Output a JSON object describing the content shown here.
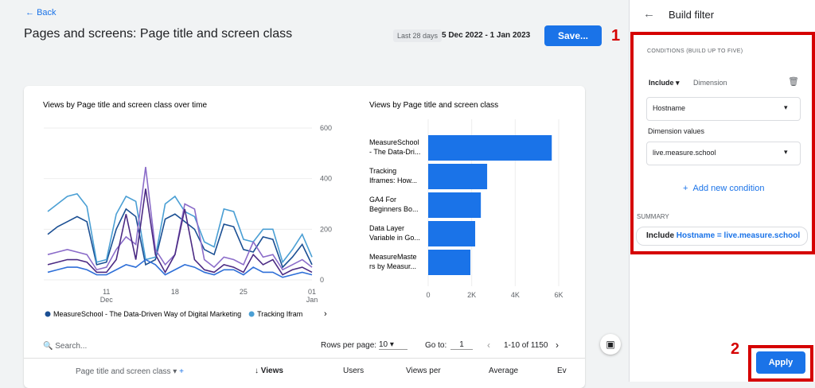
{
  "header": {
    "back": "Back",
    "title": "Pages and screens: Page title and screen class",
    "date_label": "Last 28 days",
    "date_range": "5 Dec 2022 - 1 Jan 2023",
    "save": "Save..."
  },
  "chart_data": [
    {
      "type": "line",
      "title": "Views by Page title and screen class over time",
      "categories": [
        null,
        null,
        null,
        null,
        null,
        null,
        "11",
        null,
        null,
        null,
        null,
        null,
        null,
        "18",
        null,
        null,
        null,
        null,
        null,
        null,
        "25",
        null,
        null,
        null,
        null,
        null,
        null,
        "01"
      ],
      "x_secondary_labels": [
        null,
        null,
        null,
        null,
        null,
        null,
        "Dec",
        null,
        null,
        null,
        null,
        null,
        null,
        null,
        null,
        null,
        null,
        null,
        null,
        null,
        null,
        null,
        null,
        null,
        null,
        null,
        null,
        "Jan"
      ],
      "ylim": [
        0,
        600
      ],
      "yticks": [
        0,
        200,
        400,
        600
      ],
      "grid": true,
      "series": [
        {
          "name": "MeasureSchool - The Data-Driven Way of Digital Marketing",
          "color": "#1b4f93",
          "values": [
            180,
            210,
            230,
            250,
            230,
            60,
            70,
            200,
            280,
            250,
            60,
            80,
            240,
            260,
            230,
            200,
            120,
            100,
            220,
            210,
            120,
            110,
            170,
            160,
            50,
            90,
            140,
            60
          ]
        },
        {
          "name": "Tracking Ifram",
          "color": "#4a9fd4",
          "values": [
            270,
            300,
            330,
            340,
            290,
            70,
            80,
            260,
            330,
            310,
            80,
            90,
            300,
            330,
            270,
            250,
            150,
            130,
            280,
            270,
            160,
            150,
            200,
            200,
            70,
            120,
            180,
            90
          ]
        },
        {
          "color": "#8b6cc9",
          "values": [
            100,
            110,
            120,
            110,
            100,
            40,
            50,
            120,
            170,
            140,
            446,
            120,
            60,
            100,
            300,
            280,
            80,
            50,
            90,
            80,
            60,
            150,
            90,
            100,
            40,
            60,
            80,
            50
          ]
        },
        {
          "color": "#4b2a83",
          "values": [
            60,
            70,
            80,
            80,
            70,
            30,
            30,
            80,
            260,
            80,
            360,
            100,
            30,
            100,
            280,
            80,
            40,
            30,
            60,
            50,
            30,
            100,
            60,
            80,
            20,
            40,
            50,
            30
          ]
        },
        {
          "color": "#2e6fd8",
          "values": [
            30,
            40,
            50,
            50,
            40,
            20,
            20,
            40,
            60,
            50,
            80,
            60,
            20,
            40,
            60,
            50,
            30,
            20,
            40,
            40,
            20,
            50,
            30,
            30,
            10,
            20,
            30,
            20
          ]
        }
      ]
    },
    {
      "type": "hbar",
      "title": "Views by Page title and screen class",
      "color": "#1a73e8",
      "categories": [
        [
          "MeasureSchool",
          "- The Data-Dri..."
        ],
        [
          "Tracking",
          "Iframes: How..."
        ],
        [
          "GA4 For",
          "Beginners Bo..."
        ],
        [
          "Data Layer",
          "Variable in Go..."
        ],
        [
          "MeasureMaste",
          "rs by Measur..."
        ]
      ],
      "values": [
        5680,
        2710,
        2420,
        2160,
        1940
      ],
      "xlim": [
        0,
        6000
      ],
      "xticks": [
        0,
        {
          "value": 2000,
          "label": "2K"
        },
        {
          "value": 4000,
          "label": "4K"
        },
        {
          "value": 6000,
          "label": "6K"
        }
      ],
      "grid": true
    }
  ],
  "table": {
    "search": "Search...",
    "rows_per_page": "Rows per page:",
    "rows_value": "10",
    "go_to": "Go to:",
    "go_to_value": "1",
    "range": "1-10 of 1150",
    "headers": [
      "Page title and screen class",
      "Views",
      "Users",
      "Views per",
      "Average",
      "Ev"
    ]
  },
  "panel": {
    "title": "Build filter",
    "conditions": "CONDITIONS (BUILD UP TO FIVE)",
    "include": "Include",
    "dimension": "Dimension",
    "hostname": "Hostname",
    "dimension_values": "Dimension values",
    "value": "live.measure.school",
    "add": "Add new condition",
    "summary_label": "SUMMARY",
    "summary_include": "Include",
    "summary_text": "Hostname = live.measure.school",
    "apply": "Apply"
  },
  "annotations": [
    "1",
    "2"
  ]
}
